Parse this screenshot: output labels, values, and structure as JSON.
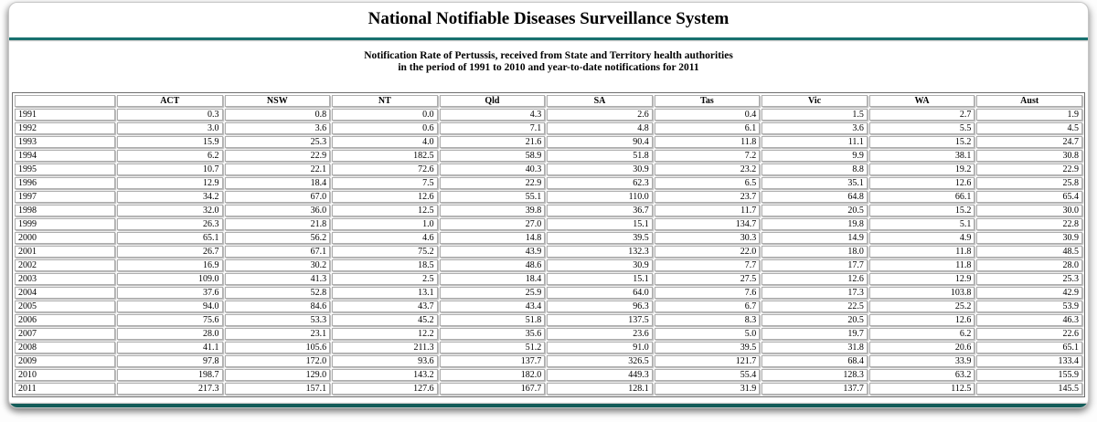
{
  "page": {
    "title": "National Notifiable Diseases Surveillance System",
    "subtitle_line1": "Notification Rate of Pertussis, received from State and Territory health authorities",
    "subtitle_line2": "in the period of 1991 to 2010 and year-to-date notifications for 2011"
  },
  "colors": {
    "accent_teal": "#17706e",
    "bottom_rule_teal": "#135c59",
    "table_outer_border": "#6e6e6e",
    "cell_border": "#aeaeae"
  },
  "table": {
    "columns": [
      "",
      "ACT",
      "NSW",
      "NT",
      "Qld",
      "SA",
      "Tas",
      "Vic",
      "WA",
      "Aust"
    ],
    "rows": [
      {
        "year": "1991",
        "values": [
          "0.3",
          "0.8",
          "0.0",
          "4.3",
          "2.6",
          "0.4",
          "1.5",
          "2.7",
          "1.9"
        ]
      },
      {
        "year": "1992",
        "values": [
          "3.0",
          "3.6",
          "0.6",
          "7.1",
          "4.8",
          "6.1",
          "3.6",
          "5.5",
          "4.5"
        ]
      },
      {
        "year": "1993",
        "values": [
          "15.9",
          "25.3",
          "4.0",
          "21.6",
          "90.4",
          "11.8",
          "11.1",
          "15.2",
          "24.7"
        ]
      },
      {
        "year": "1994",
        "values": [
          "6.2",
          "22.9",
          "182.5",
          "58.9",
          "51.8",
          "7.2",
          "9.9",
          "38.1",
          "30.8"
        ]
      },
      {
        "year": "1995",
        "values": [
          "10.7",
          "22.1",
          "72.6",
          "40.3",
          "30.9",
          "23.2",
          "8.8",
          "19.2",
          "22.9"
        ]
      },
      {
        "year": "1996",
        "values": [
          "12.9",
          "18.4",
          "7.5",
          "22.9",
          "62.3",
          "6.5",
          "35.1",
          "12.6",
          "25.8"
        ]
      },
      {
        "year": "1997",
        "values": [
          "34.2",
          "67.0",
          "12.6",
          "55.1",
          "110.0",
          "23.7",
          "64.8",
          "66.1",
          "65.4"
        ]
      },
      {
        "year": "1998",
        "values": [
          "32.0",
          "36.0",
          "12.5",
          "39.8",
          "36.7",
          "11.7",
          "20.5",
          "15.2",
          "30.0"
        ]
      },
      {
        "year": "1999",
        "values": [
          "26.3",
          "21.8",
          "1.0",
          "27.0",
          "15.1",
          "134.7",
          "19.8",
          "5.1",
          "22.8"
        ]
      },
      {
        "year": "2000",
        "values": [
          "65.1",
          "56.2",
          "4.6",
          "14.8",
          "39.5",
          "30.3",
          "14.9",
          "4.9",
          "30.9"
        ]
      },
      {
        "year": "2001",
        "values": [
          "26.7",
          "67.1",
          "75.2",
          "43.9",
          "132.3",
          "22.0",
          "18.0",
          "11.8",
          "48.5"
        ]
      },
      {
        "year": "2002",
        "values": [
          "16.9",
          "30.2",
          "18.5",
          "48.6",
          "30.9",
          "7.7",
          "17.7",
          "11.8",
          "28.0"
        ]
      },
      {
        "year": "2003",
        "values": [
          "109.0",
          "41.3",
          "2.5",
          "18.4",
          "15.1",
          "27.5",
          "12.6",
          "12.9",
          "25.3"
        ]
      },
      {
        "year": "2004",
        "values": [
          "37.6",
          "52.8",
          "13.1",
          "25.9",
          "64.0",
          "7.6",
          "17.3",
          "103.8",
          "42.9"
        ]
      },
      {
        "year": "2005",
        "values": [
          "94.0",
          "84.6",
          "43.7",
          "43.4",
          "96.3",
          "6.7",
          "22.5",
          "25.2",
          "53.9"
        ]
      },
      {
        "year": "2006",
        "values": [
          "75.6",
          "53.3",
          "45.2",
          "51.8",
          "137.5",
          "8.3",
          "20.5",
          "12.6",
          "46.3"
        ]
      },
      {
        "year": "2007",
        "values": [
          "28.0",
          "23.1",
          "12.2",
          "35.6",
          "23.6",
          "5.0",
          "19.7",
          "6.2",
          "22.6"
        ]
      },
      {
        "year": "2008",
        "values": [
          "41.1",
          "105.6",
          "211.3",
          "51.2",
          "91.0",
          "39.5",
          "31.8",
          "20.6",
          "65.1"
        ]
      },
      {
        "year": "2009",
        "values": [
          "97.8",
          "172.0",
          "93.6",
          "137.7",
          "326.5",
          "121.7",
          "68.4",
          "33.9",
          "133.4"
        ]
      },
      {
        "year": "2010",
        "values": [
          "198.7",
          "129.0",
          "143.2",
          "182.0",
          "449.3",
          "55.4",
          "128.3",
          "63.2",
          "155.9"
        ]
      },
      {
        "year": "2011",
        "values": [
          "217.3",
          "157.1",
          "127.6",
          "167.7",
          "128.1",
          "31.9",
          "137.7",
          "112.5",
          "145.5"
        ]
      }
    ]
  }
}
